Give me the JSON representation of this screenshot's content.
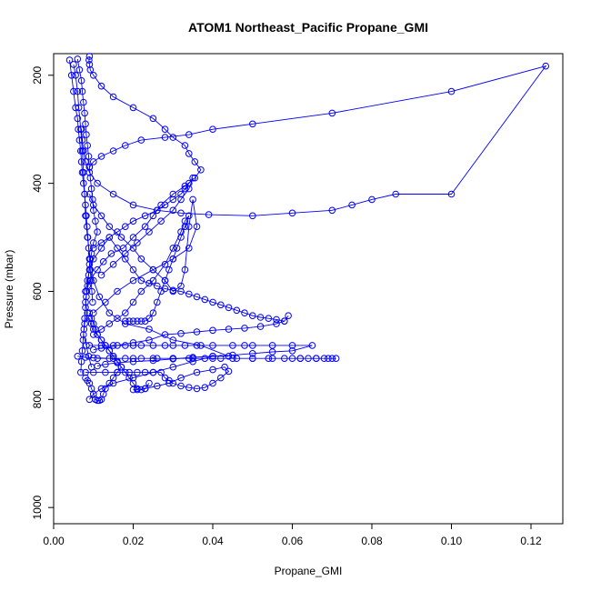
{
  "chart_data": {
    "type": "scatter",
    "title": "ATOM1 Northeast_Pacific Propane_GMI",
    "xlabel": "Propane_GMI",
    "ylabel": "Pressure (mbar)",
    "xlim": [
      0,
      0.128
    ],
    "ylim": [
      1030,
      160
    ],
    "y_reversed": true,
    "grid": false,
    "legend": "none",
    "x_ticks": [
      {
        "value": 0.0,
        "label": "0.00"
      },
      {
        "value": 0.02,
        "label": "0.02"
      },
      {
        "value": 0.04,
        "label": "0.04"
      },
      {
        "value": 0.06,
        "label": "0.06"
      },
      {
        "value": 0.08,
        "label": "0.08"
      },
      {
        "value": 0.1,
        "label": "0.10"
      },
      {
        "value": 0.12,
        "label": "0.12"
      }
    ],
    "y_ticks": [
      {
        "value": 200,
        "label": "200"
      },
      {
        "value": 400,
        "label": "400"
      },
      {
        "value": 600,
        "label": "600"
      },
      {
        "value": 800,
        "label": "800"
      },
      {
        "value": 1000,
        "label": "1000"
      }
    ],
    "series": [
      {
        "color": "#0000ff",
        "marker": "open-circle",
        "x": [
          0.0095,
          0.0088,
          0.0082,
          0.0075,
          0.0078,
          0.0085,
          0.008,
          0.0083,
          0.009,
          0.011,
          0.0125,
          0.0145,
          0.0175,
          0.02,
          0.023,
          0.025,
          0.027,
          0.03,
          0.033,
          0.0355,
          0.037,
          0.0355,
          0.034,
          0.033,
          0.03,
          0.028,
          0.025,
          0.02,
          0.015,
          0.012,
          0.01,
          0.0092,
          0.009,
          0.0089,
          0.009
        ],
        "y": [
          740,
          720,
          700,
          680,
          660,
          640,
          620,
          600,
          580,
          560,
          545,
          530,
          520,
          500,
          480,
          460,
          440,
          420,
          405,
          390,
          375,
          360,
          345,
          330,
          315,
          300,
          280,
          260,
          240,
          220,
          200,
          190,
          180,
          172,
          165
        ]
      },
      {
        "color": "#0000ff",
        "marker": "open-circle",
        "x": [
          0.005,
          0.0055,
          0.006,
          0.0063,
          0.0068,
          0.0072,
          0.0075,
          0.0078,
          0.008,
          0.0085,
          0.0092,
          0.01,
          0.0115,
          0.014,
          0.018,
          0.024,
          0.03,
          0.037,
          0.044,
          0.04,
          0.035,
          0.03,
          0.025,
          0.02,
          0.015,
          0.012,
          0.01,
          0.009
        ],
        "y": [
          180,
          200,
          230,
          260,
          300,
          340,
          380,
          420,
          460,
          500,
          540,
          580,
          610,
          640,
          660,
          670,
          690,
          700,
          720,
          720,
          730,
          740,
          750,
          760,
          770,
          780,
          790,
          800
        ]
      },
      {
        "color": "#0000ff",
        "marker": "open-circle",
        "x": [
          0.007,
          0.0072,
          0.0075,
          0.008,
          0.009,
          0.011,
          0.015,
          0.02,
          0.026,
          0.032,
          0.039,
          0.05,
          0.06,
          0.07,
          0.075,
          0.08,
          0.086,
          0.1,
          0.1237,
          0.1,
          0.07,
          0.05,
          0.04,
          0.034,
          0.028,
          0.022,
          0.018,
          0.015,
          0.012,
          0.01,
          0.009
        ],
        "y": [
          300,
          320,
          340,
          360,
          380,
          400,
          420,
          440,
          450,
          455,
          458,
          460,
          455,
          450,
          440,
          430,
          420,
          420,
          183,
          230,
          270,
          290,
          300,
          310,
          315,
          320,
          330,
          340,
          350,
          360,
          370
        ]
      },
      {
        "color": "#0000ff",
        "marker": "open-circle",
        "x": [
          0.006,
          0.008,
          0.01,
          0.015,
          0.02,
          0.025,
          0.03,
          0.035,
          0.04,
          0.045,
          0.05,
          0.055,
          0.06,
          0.062,
          0.064,
          0.066,
          0.068,
          0.07,
          0.071,
          0.069,
          0.066,
          0.062,
          0.058,
          0.054,
          0.05,
          0.046,
          0.042,
          0.038,
          0.034,
          0.03,
          0.026,
          0.022,
          0.018,
          0.014,
          0.011
        ],
        "y": [
          720,
          722,
          723,
          724,
          724,
          724,
          724,
          724,
          724,
          724,
          724,
          724,
          724,
          724,
          724,
          724,
          724,
          724,
          724,
          724,
          724,
          724,
          724,
          724,
          724,
          724,
          724,
          724,
          724,
          724,
          724,
          724,
          724,
          724,
          724
        ]
      },
      {
        "color": "#0000ff",
        "marker": "open-circle",
        "x": [
          0.009,
          0.012,
          0.015,
          0.018,
          0.02,
          0.022,
          0.025,
          0.028,
          0.03,
          0.033,
          0.036,
          0.04,
          0.045,
          0.048,
          0.05,
          0.055,
          0.06,
          0.065,
          0.06,
          0.055,
          0.05,
          0.045,
          0.04,
          0.035,
          0.03,
          0.025,
          0.02,
          0.016,
          0.013,
          0.011
        ],
        "y": [
          700,
          700,
          700,
          700,
          700,
          700,
          700,
          700,
          700,
          700,
          700,
          700,
          700,
          700,
          700,
          700,
          700,
          700,
          710,
          712,
          715,
          718,
          720,
          722,
          725,
          728,
          730,
          732,
          735,
          738
        ]
      },
      {
        "color": "#0000ff",
        "marker": "open-circle",
        "x": [
          0.008,
          0.01,
          0.013,
          0.016,
          0.019,
          0.021,
          0.023,
          0.025,
          0.027,
          0.028,
          0.029,
          0.03,
          0.032,
          0.034,
          0.036,
          0.038,
          0.04,
          0.042,
          0.044,
          0.043,
          0.04,
          0.036,
          0.032,
          0.029,
          0.026,
          0.023,
          0.021,
          0.02
        ],
        "y": [
          750,
          750,
          750,
          750,
          750,
          750,
          750,
          750,
          750,
          760,
          765,
          770,
          775,
          778,
          780,
          778,
          770,
          760,
          748,
          740,
          745,
          750,
          760,
          770,
          775,
          780,
          782,
          782
        ]
      },
      {
        "color": "#0000ff",
        "marker": "open-circle",
        "x": [
          0.018,
          0.019,
          0.02,
          0.021,
          0.022,
          0.023,
          0.024,
          0.025,
          0.026,
          0.027,
          0.028,
          0.029,
          0.03,
          0.031,
          0.032,
          0.033,
          0.034,
          0.033,
          0.032,
          0.03,
          0.028,
          0.025,
          0.022,
          0.02,
          0.018,
          0.016,
          0.014,
          0.012,
          0.01
        ],
        "y": [
          655,
          655,
          655,
          655,
          655,
          655,
          650,
          640,
          620,
          600,
          580,
          560,
          540,
          520,
          500,
          480,
          460,
          470,
          490,
          520,
          550,
          580,
          600,
          620,
          640,
          650,
          660,
          670,
          680
        ]
      },
      {
        "color": "#0000ff",
        "marker": "open-circle",
        "x": [
          0.01,
          0.013,
          0.016,
          0.02,
          0.025,
          0.03,
          0.034,
          0.036,
          0.035,
          0.034,
          0.033,
          0.032,
          0.03,
          0.028,
          0.025,
          0.022,
          0.02,
          0.017,
          0.014,
          0.012,
          0.01,
          0.009
        ],
        "y": [
          640,
          620,
          600,
          580,
          560,
          540,
          520,
          480,
          430,
          480,
          560,
          590,
          600,
          580,
          560,
          540,
          520,
          500,
          480,
          460,
          440,
          420
        ]
      },
      {
        "color": "#0000ff",
        "marker": "open-circle",
        "x": [
          0.008,
          0.0085,
          0.009,
          0.01,
          0.012,
          0.014,
          0.016,
          0.018,
          0.02,
          0.022,
          0.024,
          0.026,
          0.028,
          0.03,
          0.032,
          0.034,
          0.036,
          0.038,
          0.04,
          0.042,
          0.044,
          0.046,
          0.048,
          0.05,
          0.052,
          0.054,
          0.056,
          0.058,
          0.059,
          0.058,
          0.056,
          0.052,
          0.048,
          0.044,
          0.04,
          0.036,
          0.032,
          0.028,
          0.024,
          0.02,
          0.016,
          0.012,
          0.01
        ],
        "y": [
          600,
          580,
          560,
          540,
          520,
          500,
          520,
          540,
          560,
          580,
          585,
          590,
          595,
          598,
          600,
          605,
          610,
          615,
          620,
          625,
          630,
          635,
          640,
          645,
          648,
          650,
          652,
          655,
          645,
          655,
          660,
          665,
          668,
          670,
          672,
          675,
          678,
          680,
          690,
          695,
          700,
          705,
          708
        ]
      },
      {
        "color": "#0000ff",
        "marker": "open-circle",
        "x": [
          0.006,
          0.0065,
          0.007,
          0.0072,
          0.0075,
          0.0078,
          0.008,
          0.0082,
          0.0085,
          0.0088,
          0.009,
          0.0092,
          0.0095,
          0.0098,
          0.01,
          0.0105,
          0.011,
          0.01,
          0.0095,
          0.009,
          0.0088,
          0.0085,
          0.0082,
          0.008,
          0.0078,
          0.0076,
          0.0074,
          0.0072,
          0.007,
          0.0068
        ],
        "y": [
          170,
          190,
          210,
          230,
          250,
          270,
          290,
          310,
          330,
          350,
          370,
          390,
          410,
          430,
          450,
          470,
          490,
          510,
          530,
          550,
          570,
          590,
          610,
          630,
          650,
          670,
          690,
          710,
          730,
          750
        ]
      },
      {
        "color": "#0000ff",
        "marker": "open-circle",
        "x": [
          0.004,
          0.0045,
          0.005,
          0.0055,
          0.006,
          0.0062,
          0.0065,
          0.0068,
          0.007,
          0.0072,
          0.0075,
          0.0078,
          0.008,
          0.0082,
          0.0084,
          0.0086,
          0.0088,
          0.009,
          0.0092,
          0.0094,
          0.0096,
          0.0098
        ],
        "y": [
          172,
          200,
          230,
          260,
          280,
          300,
          320,
          340,
          360,
          380,
          400,
          420,
          440,
          460,
          480,
          500,
          520,
          540,
          560,
          580,
          600,
          620
        ]
      },
      {
        "color": "#0000ff",
        "marker": "open-circle",
        "x": [
          0.009,
          0.0095,
          0.01,
          0.0105,
          0.011,
          0.012,
          0.013,
          0.014,
          0.015,
          0.016,
          0.017,
          0.018,
          0.019,
          0.02,
          0.021,
          0.022,
          0.023,
          0.024
        ],
        "y": [
          640,
          650,
          660,
          670,
          680,
          690,
          700,
          710,
          720,
          730,
          740,
          750,
          760,
          770,
          780,
          782,
          780,
          770
        ]
      },
      {
        "color": "#0000ff",
        "marker": "open-circle",
        "x": [
          0.008,
          0.0085,
          0.009,
          0.0095,
          0.01,
          0.0105,
          0.011,
          0.0115,
          0.012,
          0.0125,
          0.013,
          0.014,
          0.015,
          0.016,
          0.017,
          0.016,
          0.015,
          0.014,
          0.013,
          0.012,
          0.011,
          0.01,
          0.0095,
          0.009
        ],
        "y": [
          760,
          765,
          770,
          780,
          790,
          800,
          802,
          802,
          800,
          790,
          780,
          770,
          760,
          750,
          740,
          730,
          720,
          710,
          700,
          690,
          680,
          670,
          660,
          650
        ]
      },
      {
        "color": "#0000ff",
        "marker": "open-circle",
        "x": [
          0.01,
          0.012,
          0.014,
          0.016,
          0.018,
          0.02,
          0.023,
          0.026,
          0.028,
          0.03,
          0.032,
          0.033,
          0.034,
          0.035,
          0.034,
          0.032,
          0.03,
          0.027,
          0.024,
          0.021,
          0.018,
          0.015,
          0.012
        ],
        "y": [
          520,
          510,
          500,
          490,
          480,
          470,
          460,
          450,
          440,
          430,
          420,
          410,
          400,
          390,
          410,
          430,
          450,
          470,
          490,
          510,
          530,
          550,
          570
        ]
      }
    ]
  }
}
